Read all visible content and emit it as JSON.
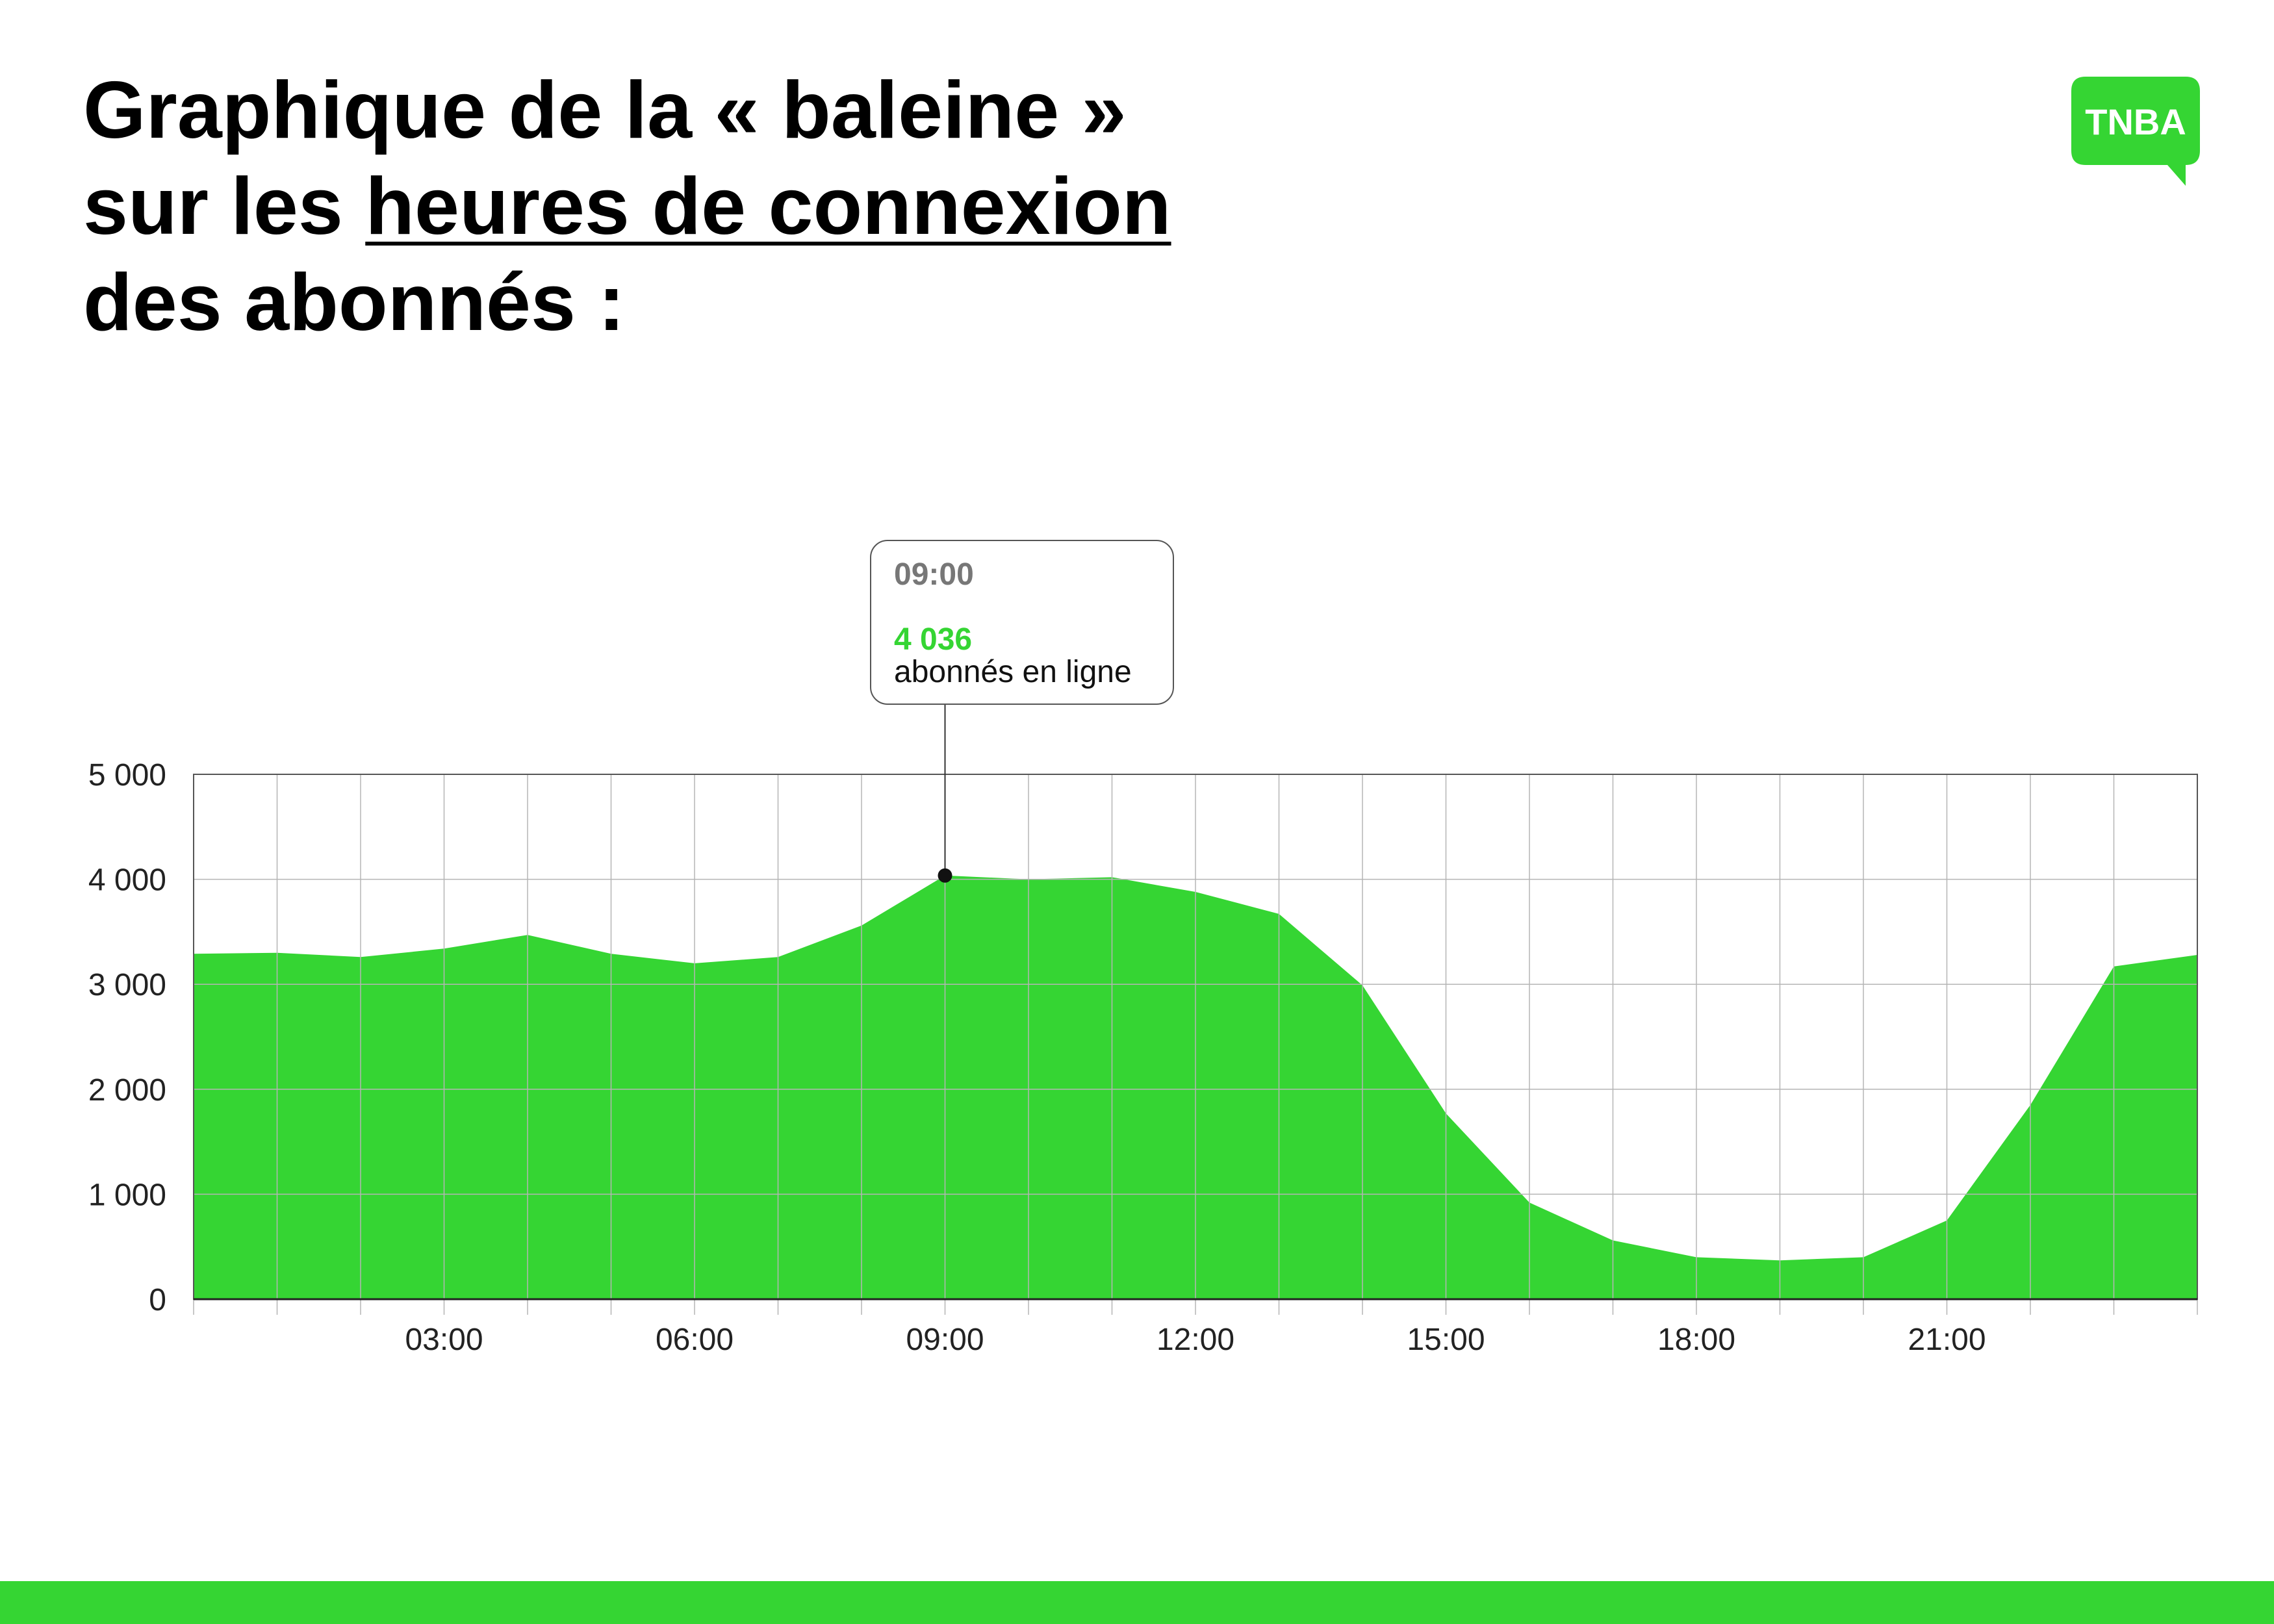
{
  "title": {
    "line1": "Graphique de la « baleine »",
    "line2_prefix": "sur les ",
    "line2_underlined": "heures de connexion",
    "line3": "des abonnés :"
  },
  "logo": {
    "text": "TNBA",
    "icon": "speech-bubble-logo-icon"
  },
  "colors": {
    "accent": "#35d533",
    "grid": "#b5b5b5",
    "text": "#000000"
  },
  "chart_data": {
    "type": "area",
    "x": [
      "00:00",
      "01:00",
      "02:00",
      "03:00",
      "04:00",
      "05:00",
      "06:00",
      "07:00",
      "08:00",
      "09:00",
      "10:00",
      "11:00",
      "12:00",
      "13:00",
      "14:00",
      "15:00",
      "16:00",
      "17:00",
      "18:00",
      "19:00",
      "20:00",
      "21:00",
      "22:00",
      "23:00",
      "24:00"
    ],
    "values": [
      3290,
      3300,
      3260,
      3340,
      3470,
      3290,
      3200,
      3260,
      3560,
      4036,
      4000,
      4020,
      3880,
      3670,
      2990,
      1770,
      920,
      560,
      400,
      370,
      400,
      750,
      1850,
      3170,
      3280
    ],
    "x_tick_labels": [
      "03:00",
      "06:00",
      "09:00",
      "12:00",
      "15:00",
      "18:00",
      "21:00"
    ],
    "x_tick_positions": [
      "03:00",
      "06:00",
      "09:00",
      "12:00",
      "15:00",
      "18:00",
      "21:00"
    ],
    "y_ticks": [
      0,
      1000,
      2000,
      3000,
      4000,
      5000
    ],
    "y_tick_labels": [
      "0",
      "1 000",
      "2 000",
      "3 000",
      "4 000",
      "5 000"
    ],
    "ylim": [
      0,
      5000
    ],
    "xlim": [
      "00:00",
      "24:00"
    ],
    "grid": true,
    "xlabel": "",
    "ylabel": "",
    "annotation": {
      "x": "09:00",
      "value": 4036,
      "time_label": "09:00",
      "value_label": "4 036",
      "text": "abonnés en ligne"
    }
  }
}
